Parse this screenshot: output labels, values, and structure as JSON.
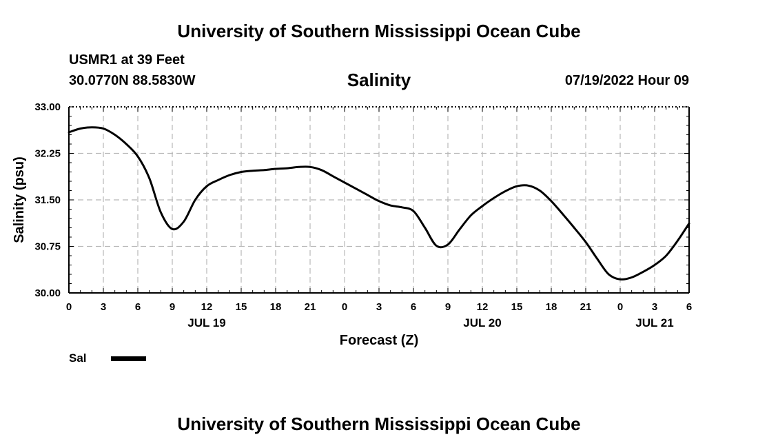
{
  "header": {
    "title": "University of Southern Mississippi Ocean Cube",
    "station": "USMR1 at 39 Feet",
    "coordinates": "30.0770N  88.5830W",
    "datetime": "07/19/2022 Hour 09"
  },
  "footer": {
    "title": "University of Southern Mississippi Ocean Cube"
  },
  "legend": {
    "label": "Sal",
    "color": "#000000"
  },
  "chart_data": {
    "type": "line",
    "title": "Salinity",
    "xlabel": "Forecast (Z)",
    "ylabel": "Salinity (psu)",
    "xlim": [
      0,
      54
    ],
    "ylim": [
      30.0,
      33.0
    ],
    "x_ticks": [
      0,
      3,
      6,
      9,
      12,
      15,
      18,
      21,
      24,
      27,
      30,
      33,
      36,
      39,
      42,
      45,
      48,
      51,
      54
    ],
    "x_tick_labels": [
      "0",
      "3",
      "6",
      "9",
      "12",
      "15",
      "18",
      "21",
      "0",
      "3",
      "6",
      "9",
      "12",
      "15",
      "18",
      "21",
      "0",
      "3",
      "6"
    ],
    "y_ticks": [
      30.0,
      30.75,
      31.5,
      32.25,
      33.0
    ],
    "y_tick_labels": [
      "30.00",
      "30.75",
      "31.50",
      "32.25",
      "33.00"
    ],
    "day_labels": [
      {
        "x": 12,
        "label": "JUL 19"
      },
      {
        "x": 36,
        "label": "JUL 20"
      },
      {
        "x": 51,
        "label": "JUL 21"
      }
    ],
    "grid": true,
    "legend_position": "bottom-left",
    "series": [
      {
        "name": "Sal",
        "color": "#000000",
        "x": [
          0,
          1,
          2,
          3,
          4,
          5,
          6,
          7,
          8,
          9,
          10,
          11,
          12,
          13,
          14,
          15,
          16,
          17,
          18,
          19,
          20,
          21,
          22,
          23,
          24,
          25,
          26,
          27,
          28,
          29,
          30,
          31,
          32,
          33,
          34,
          35,
          36,
          37,
          38,
          39,
          40,
          41,
          42,
          43,
          44,
          45,
          46,
          47,
          48,
          49,
          50,
          51,
          52,
          53,
          54
        ],
        "y": [
          32.59,
          32.65,
          32.67,
          32.65,
          32.55,
          32.4,
          32.2,
          31.85,
          31.3,
          31.03,
          31.15,
          31.5,
          31.72,
          31.82,
          31.9,
          31.95,
          31.97,
          31.98,
          32.0,
          32.01,
          32.03,
          32.03,
          31.98,
          31.88,
          31.78,
          31.68,
          31.58,
          31.48,
          31.41,
          31.38,
          31.32,
          31.05,
          30.76,
          30.78,
          31.02,
          31.25,
          31.4,
          31.53,
          31.64,
          31.72,
          31.73,
          31.65,
          31.48,
          31.27,
          31.05,
          30.82,
          30.55,
          30.3,
          30.22,
          30.25,
          30.34,
          30.45,
          30.6,
          30.84,
          31.12
        ]
      }
    ]
  }
}
